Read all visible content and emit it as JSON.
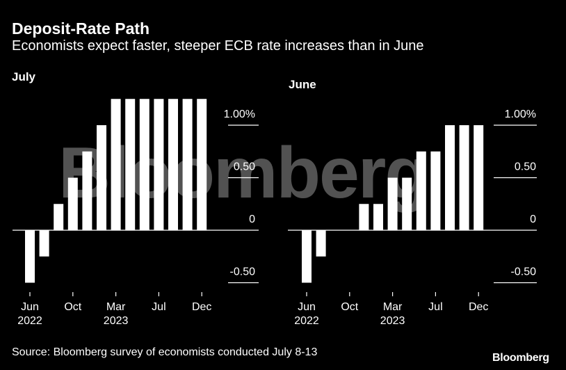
{
  "title": "Deposit-Rate Path",
  "subtitle": "Economists expect faster, steeper ECB rate increases than in June",
  "source": "Source: Bloomberg survey of economists conducted July 8-13",
  "brand": "Bloomberg",
  "watermark": "Bloomberg",
  "colors": {
    "background": "#000000",
    "bars": "#ffffff",
    "text": "#ffffff"
  },
  "chart_data": [
    {
      "type": "bar",
      "panel_label": "July",
      "y_ticks": [
        {
          "value": 1.0,
          "label": "1.00%"
        },
        {
          "value": 0.5,
          "label": "0.50"
        },
        {
          "value": 0,
          "label": "0"
        },
        {
          "value": -0.5,
          "label": "-0.50"
        }
      ],
      "ylim": [
        -0.5,
        1.25
      ],
      "x_ticks": [
        {
          "index": 0,
          "label": "Jun",
          "year": "2022"
        },
        {
          "index": 3,
          "label": "Oct",
          "year": ""
        },
        {
          "index": 6,
          "label": "Mar",
          "year": "2023"
        },
        {
          "index": 9,
          "label": "Jul",
          "year": ""
        },
        {
          "index": 12,
          "label": "Dec",
          "year": ""
        }
      ],
      "values": [
        -0.5,
        -0.25,
        0.25,
        0.5,
        0.75,
        1.0,
        1.25,
        1.25,
        1.25,
        1.25,
        1.25,
        1.25,
        1.25
      ]
    },
    {
      "type": "bar",
      "panel_label": "June",
      "y_ticks": [
        {
          "value": 1.0,
          "label": "1.00%"
        },
        {
          "value": 0.5,
          "label": "0.50"
        },
        {
          "value": 0,
          "label": "0"
        },
        {
          "value": -0.5,
          "label": "-0.50"
        }
      ],
      "ylim": [
        -0.5,
        1.0
      ],
      "x_ticks": [
        {
          "index": 0,
          "label": "Jun",
          "year": "2022"
        },
        {
          "index": 3,
          "label": "Oct",
          "year": ""
        },
        {
          "index": 6,
          "label": "Mar",
          "year": "2023"
        },
        {
          "index": 9,
          "label": "Jul",
          "year": ""
        },
        {
          "index": 12,
          "label": "Dec",
          "year": ""
        }
      ],
      "values": [
        -0.5,
        -0.25,
        0,
        0,
        0.25,
        0.25,
        0.5,
        0.5,
        0.75,
        0.75,
        1.0,
        1.0,
        1.0
      ]
    }
  ]
}
